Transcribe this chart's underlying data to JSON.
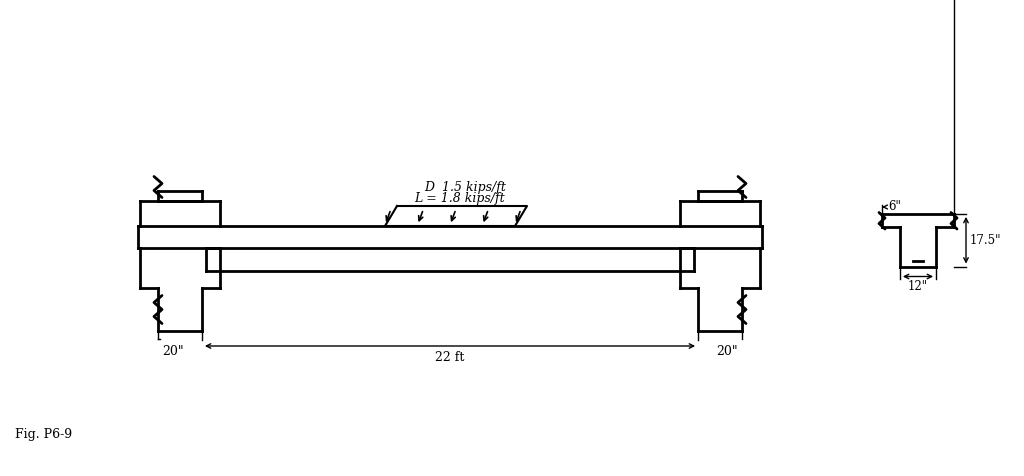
{
  "bg_color": "#ffffff",
  "text_color": "#000000",
  "line_color": "#000000",
  "line_width": 2.0,
  "thin_lw": 1.0,
  "fig_label": "Fig. P6-9",
  "load_label_D": "D  1.5 kips/ft",
  "load_label_L": "L = 1.8 kips/ft",
  "dim_span": "22 ft",
  "dim_left": "20\"",
  "dim_right": "20\"",
  "cs_6in": "6\"",
  "cs_175in": "17.5\"",
  "cs_12in": "12\""
}
